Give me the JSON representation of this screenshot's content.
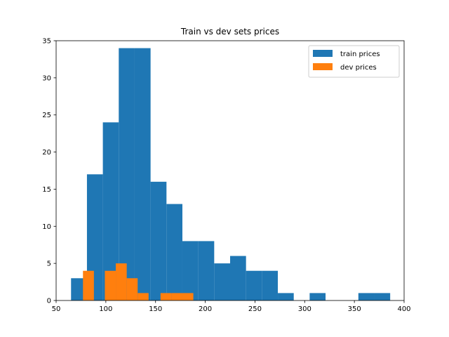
{
  "chart_data": {
    "type": "bar",
    "title": "Train vs dev sets prices",
    "xlabel": "",
    "ylabel": "",
    "xlim": [
      50,
      400
    ],
    "ylim": [
      0,
      35
    ],
    "xticks": [
      50,
      100,
      150,
      200,
      250,
      300,
      350,
      400
    ],
    "yticks": [
      0,
      5,
      10,
      15,
      20,
      25,
      30,
      35
    ],
    "grid": false,
    "legend_position": "top-right",
    "series": [
      {
        "name": "train prices",
        "color": "#1f77b4",
        "bins": [
          {
            "x0": 65,
            "x1": 81,
            "value": 3
          },
          {
            "x0": 81,
            "x1": 97,
            "value": 17
          },
          {
            "x0": 97,
            "x1": 113,
            "value": 24
          },
          {
            "x0": 113,
            "x1": 129,
            "value": 34
          },
          {
            "x0": 129,
            "x1": 145,
            "value": 34
          },
          {
            "x0": 145,
            "x1": 161,
            "value": 16
          },
          {
            "x0": 161,
            "x1": 177,
            "value": 13
          },
          {
            "x0": 177,
            "x1": 193,
            "value": 8
          },
          {
            "x0": 193,
            "x1": 209,
            "value": 8
          },
          {
            "x0": 209,
            "x1": 225,
            "value": 5
          },
          {
            "x0": 225,
            "x1": 241,
            "value": 6
          },
          {
            "x0": 241,
            "x1": 257,
            "value": 4
          },
          {
            "x0": 257,
            "x1": 273,
            "value": 4
          },
          {
            "x0": 273,
            "x1": 289,
            "value": 1
          },
          {
            "x0": 305,
            "x1": 321,
            "value": 1
          },
          {
            "x0": 354,
            "x1": 370,
            "value": 1
          },
          {
            "x0": 370,
            "x1": 386,
            "value": 1
          }
        ]
      },
      {
        "name": "dev prices",
        "color": "#ff7f0e",
        "bins": [
          {
            "x0": 77,
            "x1": 88,
            "value": 4
          },
          {
            "x0": 99,
            "x1": 110,
            "value": 4
          },
          {
            "x0": 110,
            "x1": 121,
            "value": 5
          },
          {
            "x0": 121,
            "x1": 132,
            "value": 3
          },
          {
            "x0": 132,
            "x1": 143,
            "value": 1
          },
          {
            "x0": 155,
            "x1": 166,
            "value": 1
          },
          {
            "x0": 166,
            "x1": 177,
            "value": 1
          },
          {
            "x0": 177,
            "x1": 188,
            "value": 1
          }
        ]
      }
    ]
  }
}
